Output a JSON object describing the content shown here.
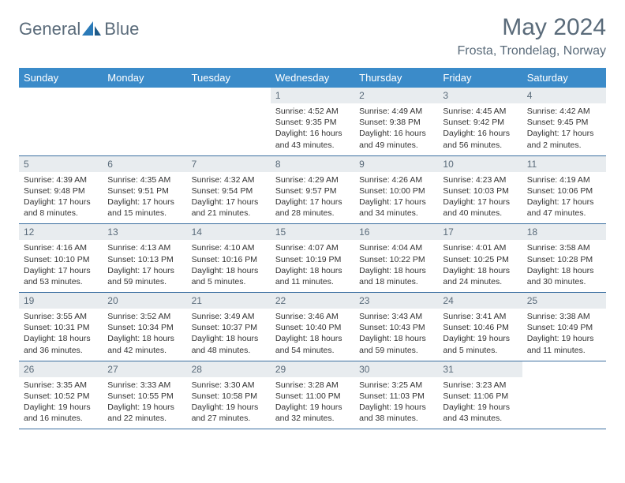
{
  "logo": {
    "text1": "General",
    "text2": "Blue"
  },
  "title": "May 2024",
  "location": "Frosta, Trondelag, Norway",
  "colors": {
    "header_bg": "#3b8bc9",
    "header_text": "#ffffff",
    "daynum_bg": "#e8ecef",
    "text_muted": "#5a6b7a",
    "row_border": "#3b6fa0",
    "logo_blue": "#2a7ab8"
  },
  "weekdays": [
    "Sunday",
    "Monday",
    "Tuesday",
    "Wednesday",
    "Thursday",
    "Friday",
    "Saturday"
  ],
  "weeks": [
    [
      {
        "n": "",
        "lines": [
          "",
          "",
          "",
          ""
        ]
      },
      {
        "n": "",
        "lines": [
          "",
          "",
          "",
          ""
        ]
      },
      {
        "n": "",
        "lines": [
          "",
          "",
          "",
          ""
        ]
      },
      {
        "n": "1",
        "lines": [
          "Sunrise: 4:52 AM",
          "Sunset: 9:35 PM",
          "Daylight: 16 hours",
          "and 43 minutes."
        ]
      },
      {
        "n": "2",
        "lines": [
          "Sunrise: 4:49 AM",
          "Sunset: 9:38 PM",
          "Daylight: 16 hours",
          "and 49 minutes."
        ]
      },
      {
        "n": "3",
        "lines": [
          "Sunrise: 4:45 AM",
          "Sunset: 9:42 PM",
          "Daylight: 16 hours",
          "and 56 minutes."
        ]
      },
      {
        "n": "4",
        "lines": [
          "Sunrise: 4:42 AM",
          "Sunset: 9:45 PM",
          "Daylight: 17 hours",
          "and 2 minutes."
        ]
      }
    ],
    [
      {
        "n": "5",
        "lines": [
          "Sunrise: 4:39 AM",
          "Sunset: 9:48 PM",
          "Daylight: 17 hours",
          "and 8 minutes."
        ]
      },
      {
        "n": "6",
        "lines": [
          "Sunrise: 4:35 AM",
          "Sunset: 9:51 PM",
          "Daylight: 17 hours",
          "and 15 minutes."
        ]
      },
      {
        "n": "7",
        "lines": [
          "Sunrise: 4:32 AM",
          "Sunset: 9:54 PM",
          "Daylight: 17 hours",
          "and 21 minutes."
        ]
      },
      {
        "n": "8",
        "lines": [
          "Sunrise: 4:29 AM",
          "Sunset: 9:57 PM",
          "Daylight: 17 hours",
          "and 28 minutes."
        ]
      },
      {
        "n": "9",
        "lines": [
          "Sunrise: 4:26 AM",
          "Sunset: 10:00 PM",
          "Daylight: 17 hours",
          "and 34 minutes."
        ]
      },
      {
        "n": "10",
        "lines": [
          "Sunrise: 4:23 AM",
          "Sunset: 10:03 PM",
          "Daylight: 17 hours",
          "and 40 minutes."
        ]
      },
      {
        "n": "11",
        "lines": [
          "Sunrise: 4:19 AM",
          "Sunset: 10:06 PM",
          "Daylight: 17 hours",
          "and 47 minutes."
        ]
      }
    ],
    [
      {
        "n": "12",
        "lines": [
          "Sunrise: 4:16 AM",
          "Sunset: 10:10 PM",
          "Daylight: 17 hours",
          "and 53 minutes."
        ]
      },
      {
        "n": "13",
        "lines": [
          "Sunrise: 4:13 AM",
          "Sunset: 10:13 PM",
          "Daylight: 17 hours",
          "and 59 minutes."
        ]
      },
      {
        "n": "14",
        "lines": [
          "Sunrise: 4:10 AM",
          "Sunset: 10:16 PM",
          "Daylight: 18 hours",
          "and 5 minutes."
        ]
      },
      {
        "n": "15",
        "lines": [
          "Sunrise: 4:07 AM",
          "Sunset: 10:19 PM",
          "Daylight: 18 hours",
          "and 11 minutes."
        ]
      },
      {
        "n": "16",
        "lines": [
          "Sunrise: 4:04 AM",
          "Sunset: 10:22 PM",
          "Daylight: 18 hours",
          "and 18 minutes."
        ]
      },
      {
        "n": "17",
        "lines": [
          "Sunrise: 4:01 AM",
          "Sunset: 10:25 PM",
          "Daylight: 18 hours",
          "and 24 minutes."
        ]
      },
      {
        "n": "18",
        "lines": [
          "Sunrise: 3:58 AM",
          "Sunset: 10:28 PM",
          "Daylight: 18 hours",
          "and 30 minutes."
        ]
      }
    ],
    [
      {
        "n": "19",
        "lines": [
          "Sunrise: 3:55 AM",
          "Sunset: 10:31 PM",
          "Daylight: 18 hours",
          "and 36 minutes."
        ]
      },
      {
        "n": "20",
        "lines": [
          "Sunrise: 3:52 AM",
          "Sunset: 10:34 PM",
          "Daylight: 18 hours",
          "and 42 minutes."
        ]
      },
      {
        "n": "21",
        "lines": [
          "Sunrise: 3:49 AM",
          "Sunset: 10:37 PM",
          "Daylight: 18 hours",
          "and 48 minutes."
        ]
      },
      {
        "n": "22",
        "lines": [
          "Sunrise: 3:46 AM",
          "Sunset: 10:40 PM",
          "Daylight: 18 hours",
          "and 54 minutes."
        ]
      },
      {
        "n": "23",
        "lines": [
          "Sunrise: 3:43 AM",
          "Sunset: 10:43 PM",
          "Daylight: 18 hours",
          "and 59 minutes."
        ]
      },
      {
        "n": "24",
        "lines": [
          "Sunrise: 3:41 AM",
          "Sunset: 10:46 PM",
          "Daylight: 19 hours",
          "and 5 minutes."
        ]
      },
      {
        "n": "25",
        "lines": [
          "Sunrise: 3:38 AM",
          "Sunset: 10:49 PM",
          "Daylight: 19 hours",
          "and 11 minutes."
        ]
      }
    ],
    [
      {
        "n": "26",
        "lines": [
          "Sunrise: 3:35 AM",
          "Sunset: 10:52 PM",
          "Daylight: 19 hours",
          "and 16 minutes."
        ]
      },
      {
        "n": "27",
        "lines": [
          "Sunrise: 3:33 AM",
          "Sunset: 10:55 PM",
          "Daylight: 19 hours",
          "and 22 minutes."
        ]
      },
      {
        "n": "28",
        "lines": [
          "Sunrise: 3:30 AM",
          "Sunset: 10:58 PM",
          "Daylight: 19 hours",
          "and 27 minutes."
        ]
      },
      {
        "n": "29",
        "lines": [
          "Sunrise: 3:28 AM",
          "Sunset: 11:00 PM",
          "Daylight: 19 hours",
          "and 32 minutes."
        ]
      },
      {
        "n": "30",
        "lines": [
          "Sunrise: 3:25 AM",
          "Sunset: 11:03 PM",
          "Daylight: 19 hours",
          "and 38 minutes."
        ]
      },
      {
        "n": "31",
        "lines": [
          "Sunrise: 3:23 AM",
          "Sunset: 11:06 PM",
          "Daylight: 19 hours",
          "and 43 minutes."
        ]
      },
      {
        "n": "",
        "lines": [
          "",
          "",
          "",
          ""
        ]
      }
    ]
  ]
}
